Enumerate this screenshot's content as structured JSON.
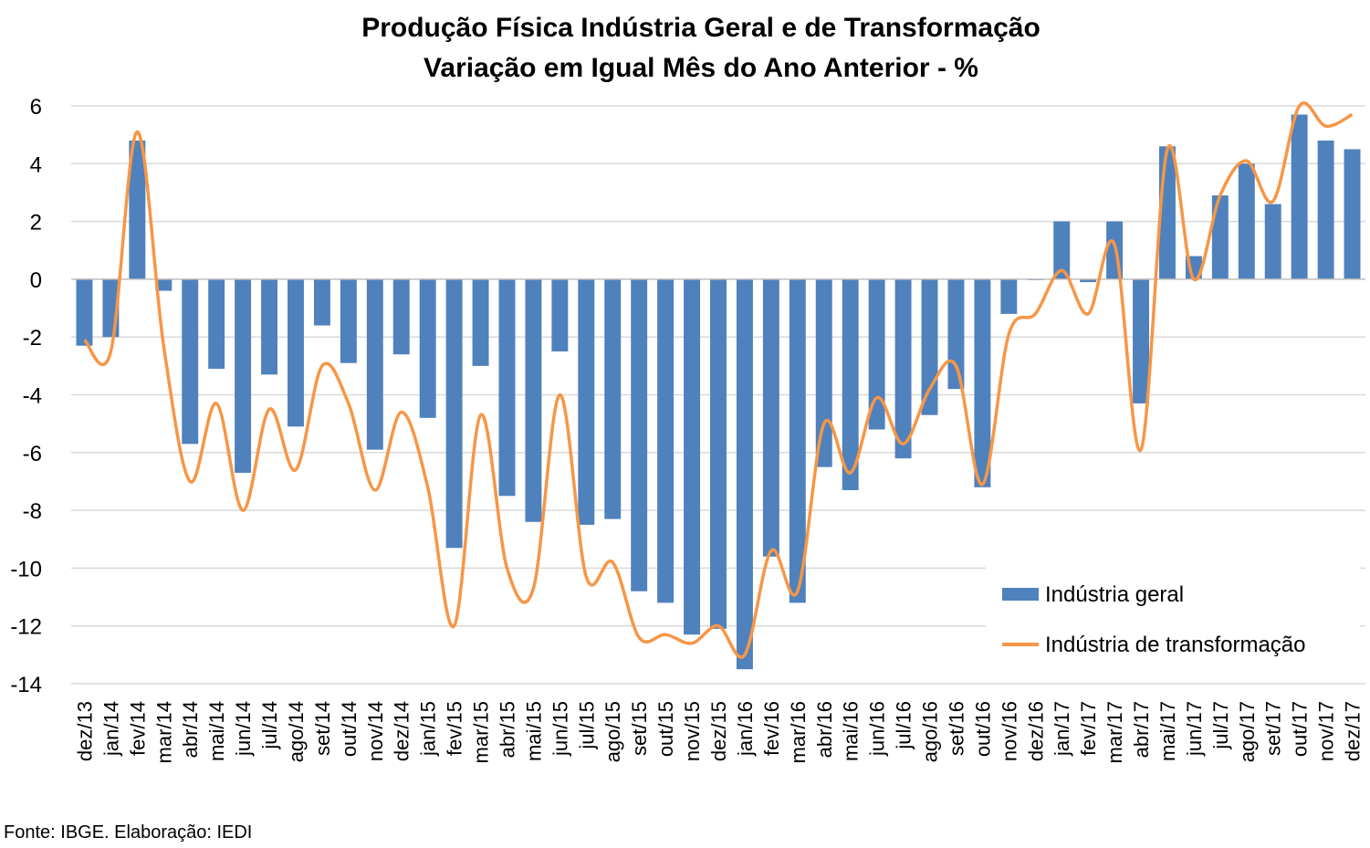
{
  "chart_data": {
    "type": "bar",
    "title": "Produção Física Indústria Geral e de Transformação",
    "subtitle": "Variação em Igual Mês do Ano Anterior - %",
    "xlabel": "",
    "ylabel": "",
    "ylim": [
      -14,
      6
    ],
    "yticks": [
      6,
      4,
      2,
      0,
      -2,
      -4,
      -6,
      -8,
      -10,
      -12,
      -14
    ],
    "grid": true,
    "legend_position": "bottom-right",
    "categories": [
      "dez/13",
      "jan/14",
      "fev/14",
      "mar/14",
      "abr/14",
      "mai/14",
      "jun/14",
      "jul/14",
      "ago/14",
      "set/14",
      "out/14",
      "nov/14",
      "dez/14",
      "jan/15",
      "fev/15",
      "mar/15",
      "abr/15",
      "mai/15",
      "jun/15",
      "jul/15",
      "ago/15",
      "set/15",
      "out/15",
      "nov/15",
      "dez/15",
      "jan/16",
      "fev/16",
      "mar/16",
      "abr/16",
      "mai/16",
      "jun/16",
      "jul/16",
      "ago/16",
      "set/16",
      "out/16",
      "nov/16",
      "dez/16",
      "jan/17",
      "fev/17",
      "mar/17",
      "abr/17",
      "mai/17",
      "jun/17",
      "jul/17",
      "ago/17",
      "set/17",
      "out/17",
      "nov/17",
      "dez/17"
    ],
    "series": [
      {
        "name": "Indústria geral",
        "kind": "bar",
        "color": "#4f81bd",
        "values": [
          -2.3,
          -2.0,
          4.8,
          -0.4,
          -5.7,
          -3.1,
          -6.7,
          -3.3,
          -5.1,
          -1.6,
          -2.9,
          -5.9,
          -2.6,
          -4.8,
          -9.3,
          -3.0,
          -7.5,
          -8.4,
          -2.5,
          -8.5,
          -8.3,
          -10.8,
          -11.2,
          -12.3,
          -12.1,
          -13.5,
          -9.6,
          -11.2,
          -6.5,
          -7.3,
          -5.2,
          -6.2,
          -4.7,
          -3.8,
          -7.2,
          -1.2,
          0.0,
          2.0,
          -0.1,
          2.0,
          -4.3,
          4.6,
          0.8,
          2.9,
          4.0,
          2.6,
          5.7,
          4.8,
          4.5
        ]
      },
      {
        "name": "Indústria de transformação",
        "kind": "line",
        "color": "#f79646",
        "values": [
          -2.1,
          -2.5,
          5.1,
          -2.3,
          -7.0,
          -4.3,
          -8.0,
          -4.5,
          -6.6,
          -3.0,
          -4.3,
          -7.3,
          -4.6,
          -7.2,
          -12.0,
          -4.7,
          -10.0,
          -10.7,
          -4.0,
          -10.3,
          -9.8,
          -12.4,
          -12.3,
          -12.6,
          -12.0,
          -13.0,
          -9.4,
          -10.8,
          -5.0,
          -6.7,
          -4.1,
          -5.7,
          -3.8,
          -3.0,
          -7.1,
          -1.9,
          -1.2,
          0.3,
          -1.2,
          1.2,
          -5.9,
          4.5,
          0.0,
          2.9,
          4.1,
          2.7,
          6.0,
          5.3,
          5.7
        ]
      }
    ]
  },
  "source_text": "Fonte: IBGE. Elaboração: IEDI"
}
